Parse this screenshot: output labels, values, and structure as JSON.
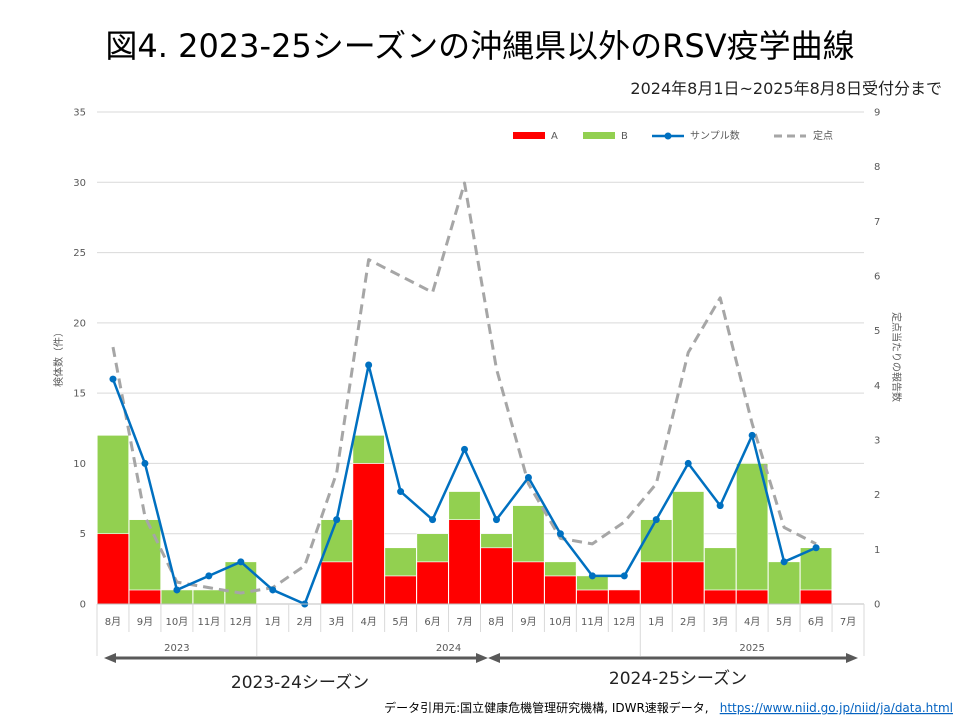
{
  "title": "図4. 2023-25シーズンの沖縄県以外のRSV疫学曲線",
  "subtitle": "2024年8月1日~2025年8月8日受付分まで",
  "source": {
    "label": "データ引用元:国立健康危機管理研究機構, IDWR速報データ,",
    "url": "https://www.niid.go.jp/niid/ja/data.html"
  },
  "seasons": [
    {
      "label": "2023-24シーズン"
    },
    {
      "label": "2024-25シーズン"
    }
  ],
  "colors": {
    "A": "#ff0000",
    "B": "#92d050",
    "samples": "#0070c0",
    "sentinel": "#a6a6a6",
    "grid": "#d9d9d9"
  },
  "chart_data": {
    "type": "bar",
    "stacked": true,
    "categories": [
      "8月",
      "9月",
      "10月",
      "11月",
      "12月",
      "1月",
      "2月",
      "3月",
      "4月",
      "5月",
      "6月",
      "7月",
      "8月",
      "9月",
      "10月",
      "11月",
      "12月",
      "1月",
      "2月",
      "3月",
      "4月",
      "5月",
      "6月",
      "7月"
    ],
    "year_groups": [
      {
        "label": "2023",
        "count": 5
      },
      {
        "label": "2024",
        "count": 12
      },
      {
        "label": "2025",
        "count": 7
      }
    ],
    "ylabel": "検体数（件）",
    "y2label": "定点当たりの報告数",
    "ylim": [
      0,
      35
    ],
    "yticks": [
      0,
      5,
      10,
      15,
      20,
      25,
      30,
      35
    ],
    "y2lim": [
      0,
      9
    ],
    "y2ticks": [
      0,
      1,
      2,
      3,
      4,
      5,
      6,
      7,
      8,
      9
    ],
    "grid": true,
    "legend_position": "top-right",
    "series": [
      {
        "name": "A",
        "type": "bar",
        "axis": "left",
        "values": [
          5,
          1,
          0,
          0,
          0,
          0,
          0,
          3,
          10,
          2,
          3,
          6,
          4,
          3,
          2,
          1,
          1,
          3,
          3,
          1,
          1,
          0,
          1,
          0
        ]
      },
      {
        "name": "B",
        "type": "bar",
        "axis": "left",
        "values": [
          7,
          5,
          1,
          1,
          3,
          0,
          0,
          3,
          2,
          2,
          2,
          2,
          1,
          4,
          1,
          1,
          0,
          3,
          5,
          3,
          9,
          3,
          3,
          0
        ]
      },
      {
        "name": "サンプル数",
        "type": "line",
        "axis": "left",
        "values": [
          16,
          10,
          1,
          2,
          3,
          1,
          0,
          6,
          17,
          8,
          6,
          11,
          6,
          9,
          5,
          2,
          2,
          6,
          10,
          7,
          12,
          3,
          4,
          null
        ]
      },
      {
        "name": "定点",
        "type": "line-dashed",
        "axis": "right",
        "values": [
          4.7,
          1.6,
          0.4,
          0.3,
          0.2,
          0.3,
          0.7,
          2.4,
          6.3,
          6.0,
          5.7,
          7.7,
          4.3,
          2.2,
          1.2,
          1.1,
          1.5,
          2.2,
          4.6,
          5.6,
          3.3,
          1.4,
          1.1,
          null
        ]
      }
    ]
  }
}
